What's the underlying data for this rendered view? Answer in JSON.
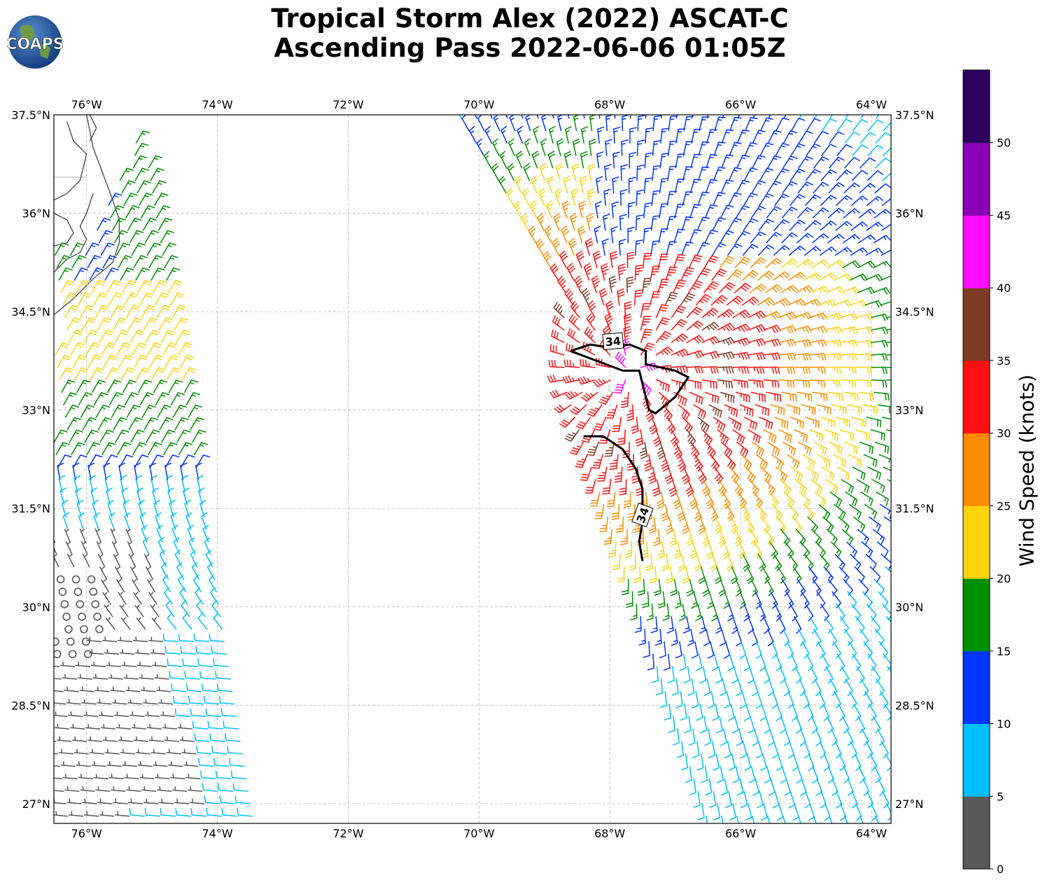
{
  "title": {
    "line1": "Tropical Storm Alex (2022) ASCAT-C",
    "line2": "Ascending Pass 2022-06-06 01:05Z"
  },
  "logo": {
    "text": "COAPS",
    "ocean_color": "#1f5fae",
    "land_color": "#5a8a3a"
  },
  "map": {
    "lon_range": [
      -76.5,
      -63.7
    ],
    "lat_range": [
      26.7,
      37.5
    ],
    "gridlines": true,
    "lon_ticks": [
      {
        "value": -76,
        "label": "76°W"
      },
      {
        "value": -74,
        "label": "74°W"
      },
      {
        "value": -72,
        "label": "72°W"
      },
      {
        "value": -70,
        "label": "70°W"
      },
      {
        "value": -68,
        "label": "68°W"
      },
      {
        "value": -66,
        "label": "66°W"
      },
      {
        "value": -64,
        "label": "64°W"
      }
    ],
    "lat_ticks": [
      {
        "value": 37.5,
        "label": "37.5°N"
      },
      {
        "value": 36,
        "label": "36°N"
      },
      {
        "value": 34.5,
        "label": "34.5°N"
      },
      {
        "value": 33,
        "label": "33°N"
      },
      {
        "value": 31.5,
        "label": "31.5°N"
      },
      {
        "value": 30,
        "label": "30°N"
      },
      {
        "value": 28.5,
        "label": "28.5°N"
      },
      {
        "value": 27,
        "label": "27°N"
      }
    ],
    "contour_label": "34",
    "contour_color": "#000000",
    "coastline_color": "#444444"
  },
  "colorbar": {
    "label": "Wind Speed (knots)",
    "bins": [
      {
        "min": 0,
        "max": 5,
        "color": "#595959"
      },
      {
        "min": 5,
        "max": 10,
        "color": "#00bfff"
      },
      {
        "min": 10,
        "max": 15,
        "color": "#0035ff"
      },
      {
        "min": 15,
        "max": 20,
        "color": "#009000"
      },
      {
        "min": 20,
        "max": 25,
        "color": "#ffd20f"
      },
      {
        "min": 25,
        "max": 30,
        "color": "#ff8c00"
      },
      {
        "min": 30,
        "max": 35,
        "color": "#ff1010"
      },
      {
        "min": 35,
        "max": 40,
        "color": "#7f3a23"
      },
      {
        "min": 40,
        "max": 45,
        "color": "#ff0dff"
      },
      {
        "min": 45,
        "max": 50,
        "color": "#8a00b8"
      },
      {
        "min": 50,
        "max": 55,
        "color": "#2d005c"
      }
    ],
    "tick_labels": [
      "0",
      "5",
      "10",
      "15",
      "20",
      "25",
      "30",
      "35",
      "40",
      "45",
      "50"
    ]
  }
}
